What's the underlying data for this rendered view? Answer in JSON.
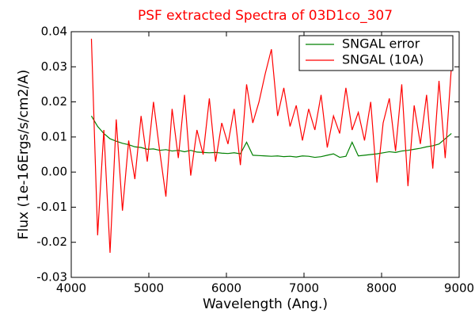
{
  "chart_data": {
    "type": "line",
    "title": "PSF extracted Spectra of 03D1co_307",
    "xlabel": "Wavelength (Ang.)",
    "ylabel": "Flux (1e-16Ergs/s/cm2/A)",
    "x": [
      4260,
      4340,
      4420,
      4500,
      4580,
      4660,
      4740,
      4820,
      4900,
      4980,
      5060,
      5140,
      5220,
      5300,
      5380,
      5460,
      5540,
      5620,
      5700,
      5780,
      5860,
      5940,
      6020,
      6100,
      6180,
      6260,
      6340,
      6420,
      6500,
      6580,
      6660,
      6740,
      6820,
      6900,
      6980,
      7060,
      7140,
      7220,
      7300,
      7380,
      7460,
      7540,
      7620,
      7700,
      7780,
      7860,
      7940,
      8020,
      8100,
      8180,
      8260,
      8340,
      8420,
      8500,
      8580,
      8660,
      8740,
      8820,
      8900
    ],
    "series": [
      {
        "name": "SNGAL error",
        "color": "#008000",
        "values": [
          0.016,
          0.013,
          0.011,
          0.0095,
          0.0088,
          0.0082,
          0.0078,
          0.0072,
          0.007,
          0.0065,
          0.0066,
          0.0062,
          0.0064,
          0.006,
          0.0062,
          0.0058,
          0.0062,
          0.0057,
          0.0056,
          0.0055,
          0.0056,
          0.0054,
          0.0053,
          0.0055,
          0.0052,
          0.0085,
          0.0048,
          0.0047,
          0.0046,
          0.0045,
          0.0046,
          0.0044,
          0.0045,
          0.0043,
          0.0046,
          0.0045,
          0.0042,
          0.0044,
          0.0048,
          0.0052,
          0.0042,
          0.0045,
          0.0085,
          0.0046,
          0.0048,
          0.005,
          0.0052,
          0.0055,
          0.0058,
          0.0056,
          0.006,
          0.0062,
          0.0065,
          0.0068,
          0.0072,
          0.0075,
          0.008,
          0.0095,
          0.011
        ]
      },
      {
        "name": "SNGAL (10A)",
        "color": "#ff0000",
        "values": [
          0.038,
          -0.018,
          0.012,
          -0.023,
          0.015,
          -0.011,
          0.009,
          -0.002,
          0.016,
          0.003,
          0.02,
          0.006,
          -0.007,
          0.018,
          0.004,
          0.022,
          -0.001,
          0.012,
          0.005,
          0.021,
          0.003,
          0.014,
          0.008,
          0.018,
          0.002,
          0.025,
          0.014,
          0.02,
          0.028,
          0.035,
          0.016,
          0.024,
          0.013,
          0.019,
          0.009,
          0.018,
          0.012,
          0.022,
          0.007,
          0.016,
          0.011,
          0.024,
          0.012,
          0.017,
          0.009,
          0.02,
          -0.003,
          0.014,
          0.021,
          0.006,
          0.025,
          -0.004,
          0.019,
          0.008,
          0.022,
          0.001,
          0.026,
          0.004,
          0.03
        ]
      }
    ],
    "xlim": [
      4000,
      9000
    ],
    "xticks": [
      4000,
      5000,
      6000,
      7000,
      8000,
      9000
    ],
    "ylim": [
      -0.03,
      0.04
    ],
    "yticks": [
      -0.03,
      -0.02,
      -0.01,
      {
        "value": 0,
        "label": "0.00"
      },
      0.01,
      0.02,
      0.03,
      0.04
    ],
    "legend": "upper right",
    "grid": false
  }
}
